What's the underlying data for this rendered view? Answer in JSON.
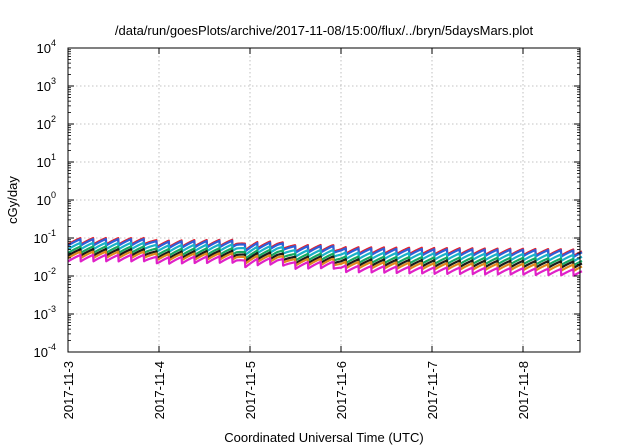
{
  "chart_data": {
    "type": "line",
    "title": "/data/run/goesPlots/archive/2017-11-08/15:00/flux/../bryn/5daysMars.plot",
    "xlabel": "Coordinated Universal Time (UTC)",
    "ylabel": "cGy/day",
    "yscale": "log",
    "ylim": [
      0.0001,
      10000
    ],
    "xlim_days": [
      0,
      5.65
    ],
    "y_ticks": [
      {
        "base": "10",
        "exp": "4",
        "value": 10000
      },
      {
        "base": "10",
        "exp": "3",
        "value": 1000
      },
      {
        "base": "10",
        "exp": "2",
        "value": 100
      },
      {
        "base": "10",
        "exp": "1",
        "value": 10
      },
      {
        "base": "10",
        "exp": "0",
        "value": 1
      },
      {
        "base": "10",
        "exp": "-1",
        "value": 0.1
      },
      {
        "base": "10",
        "exp": "-2",
        "value": 0.01
      },
      {
        "base": "10",
        "exp": "-3",
        "value": 0.001
      },
      {
        "base": "10",
        "exp": "-4",
        "value": 0.0001
      }
    ],
    "x_ticks": [
      {
        "label": "2017-11-3",
        "day": 0
      },
      {
        "label": "2017-11-4",
        "day": 1
      },
      {
        "label": "2017-11-5",
        "day": 2
      },
      {
        "label": "2017-11-6",
        "day": 3
      },
      {
        "label": "2017-11-7",
        "day": 4
      },
      {
        "label": "2017-11-8",
        "day": 5
      }
    ],
    "grid": true,
    "series": [
      {
        "name": "series-red",
        "color": "#e8202a",
        "knots": [
          [
            0,
            0.1
          ],
          [
            0.85,
            0.1
          ],
          [
            1.0,
            0.085
          ],
          [
            1.6,
            0.09
          ],
          [
            1.85,
            0.09
          ],
          [
            1.95,
            0.07
          ],
          [
            2.1,
            0.08
          ],
          [
            2.3,
            0.082
          ],
          [
            2.5,
            0.065
          ],
          [
            2.9,
            0.066
          ],
          [
            3.0,
            0.058
          ],
          [
            4.0,
            0.055
          ],
          [
            5.0,
            0.052
          ],
          [
            5.65,
            0.05
          ]
        ]
      },
      {
        "name": "series-blue",
        "color": "#2f5fd8",
        "knots": [
          [
            0,
            0.094
          ],
          [
            0.85,
            0.094
          ],
          [
            1.0,
            0.08
          ],
          [
            1.6,
            0.085
          ],
          [
            1.85,
            0.085
          ],
          [
            1.95,
            0.066
          ],
          [
            2.1,
            0.075
          ],
          [
            2.3,
            0.077
          ],
          [
            2.5,
            0.061
          ],
          [
            2.9,
            0.062
          ],
          [
            3.0,
            0.054
          ],
          [
            4.0,
            0.051
          ],
          [
            5.0,
            0.049
          ],
          [
            5.65,
            0.047
          ]
        ]
      },
      {
        "name": "series-cyan",
        "color": "#1ab0c8",
        "knots": [
          [
            0,
            0.075
          ],
          [
            0.85,
            0.075
          ],
          [
            1.0,
            0.064
          ],
          [
            1.6,
            0.068
          ],
          [
            1.85,
            0.068
          ],
          [
            1.95,
            0.053
          ],
          [
            2.1,
            0.06
          ],
          [
            2.3,
            0.062
          ],
          [
            2.5,
            0.048
          ],
          [
            2.9,
            0.049
          ],
          [
            3.0,
            0.042
          ],
          [
            4.0,
            0.04
          ],
          [
            5.0,
            0.038
          ],
          [
            5.65,
            0.036
          ]
        ]
      },
      {
        "name": "series-green",
        "color": "#16a860",
        "knots": [
          [
            0,
            0.06
          ],
          [
            0.85,
            0.06
          ],
          [
            1.0,
            0.051
          ],
          [
            1.6,
            0.054
          ],
          [
            1.85,
            0.054
          ],
          [
            1.95,
            0.042
          ],
          [
            2.1,
            0.048
          ],
          [
            2.3,
            0.05
          ],
          [
            2.5,
            0.038
          ],
          [
            2.9,
            0.039
          ],
          [
            3.0,
            0.033
          ],
          [
            4.0,
            0.031
          ],
          [
            5.0,
            0.03
          ],
          [
            5.65,
            0.028
          ]
        ]
      },
      {
        "name": "series-black",
        "color": "#1a1a1a",
        "knots": [
          [
            0,
            0.051
          ],
          [
            0.85,
            0.051
          ],
          [
            1.0,
            0.043
          ],
          [
            1.6,
            0.046
          ],
          [
            1.85,
            0.046
          ],
          [
            1.95,
            0.036
          ],
          [
            2.1,
            0.041
          ],
          [
            2.3,
            0.042
          ],
          [
            2.5,
            0.032
          ],
          [
            2.9,
            0.033
          ],
          [
            3.0,
            0.028
          ],
          [
            4.0,
            0.026
          ],
          [
            5.0,
            0.025
          ],
          [
            5.65,
            0.024
          ]
        ]
      },
      {
        "name": "series-orange",
        "color": "#e08a1e",
        "knots": [
          [
            0,
            0.044
          ],
          [
            0.85,
            0.044
          ],
          [
            1.0,
            0.038
          ],
          [
            1.6,
            0.04
          ],
          [
            1.85,
            0.04
          ],
          [
            1.95,
            0.031
          ],
          [
            2.1,
            0.035
          ],
          [
            2.3,
            0.036
          ],
          [
            2.5,
            0.028
          ],
          [
            2.9,
            0.029
          ],
          [
            3.0,
            0.024
          ],
          [
            4.0,
            0.022
          ],
          [
            5.0,
            0.021
          ],
          [
            5.65,
            0.02
          ]
        ]
      },
      {
        "name": "series-magenta",
        "color": "#e020c8",
        "knots": [
          [
            0,
            0.036
          ],
          [
            0.85,
            0.036
          ],
          [
            1.0,
            0.031
          ],
          [
            1.6,
            0.033
          ],
          [
            1.85,
            0.033
          ],
          [
            1.95,
            0.025
          ],
          [
            2.1,
            0.029
          ],
          [
            2.3,
            0.03
          ],
          [
            2.5,
            0.023
          ],
          [
            2.9,
            0.024
          ],
          [
            3.0,
            0.019
          ],
          [
            4.0,
            0.017
          ],
          [
            5.0,
            0.016
          ],
          [
            5.65,
            0.015
          ]
        ]
      }
    ],
    "sawtooth_periods_per_day": 7.2,
    "sawtooth_drop_fraction": 0.33
  }
}
